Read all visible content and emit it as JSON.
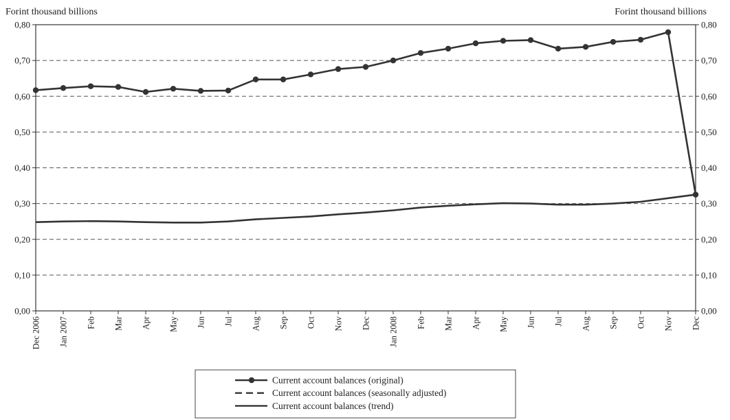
{
  "chart_data": {
    "type": "line",
    "y_unit_label_left": "Forint thousand billions",
    "y_unit_label_right": "Forint thousand billions",
    "ylim": [
      0,
      0.8
    ],
    "y_ticks": [
      "0,00",
      "0,10",
      "0,20",
      "0,30",
      "0,40",
      "0,50",
      "0,60",
      "0,70",
      "0,80"
    ],
    "y_tick_values": [
      0,
      0.1,
      0.2,
      0.3,
      0.4,
      0.5,
      0.6,
      0.7,
      0.8
    ],
    "grid": "horizontal dashed",
    "categories": [
      "Dec 2006",
      "Jan 2007",
      "Feb",
      "Mar",
      "Apr",
      "May",
      "Jun",
      "Jul",
      "Aug",
      "Sep",
      "Oct",
      "Nov",
      "Dec",
      "Jan 2008",
      "Feb",
      "Mar",
      "Apr",
      "May",
      "Jun",
      "Jul",
      "Aug",
      "Sep",
      "Oct",
      "Nov",
      "Dec"
    ],
    "series": [
      {
        "name": "Current account balances (original)",
        "style": "solid-markers",
        "color": "#333333",
        "values": [
          0.617,
          0.623,
          0.628,
          0.626,
          0.612,
          0.621,
          0.615,
          0.616,
          0.647,
          0.647,
          0.661,
          0.676,
          0.682,
          0.7,
          0.721,
          0.733,
          0.748,
          0.755,
          0.757,
          0.733,
          0.738,
          0.752,
          0.758,
          0.779,
          0.325
        ]
      },
      {
        "name": "Current account balances (seasonally adjusted)",
        "style": "dashed",
        "color": "#333333",
        "values": [
          null,
          null,
          null,
          null,
          null,
          null,
          null,
          null,
          null,
          null,
          null,
          null,
          null,
          null,
          null,
          null,
          null,
          null,
          null,
          null,
          null,
          null,
          null,
          null,
          null
        ]
      },
      {
        "name": "Current account balances (trend)",
        "style": "solid",
        "color": "#333333",
        "values": [
          0.248,
          0.25,
          0.251,
          0.25,
          0.248,
          0.247,
          0.247,
          0.25,
          0.256,
          0.26,
          0.264,
          0.27,
          0.275,
          0.281,
          0.289,
          0.294,
          0.298,
          0.301,
          0.3,
          0.297,
          0.297,
          0.3,
          0.305,
          0.315,
          0.325
        ]
      }
    ],
    "legend_position": "bottom-center"
  }
}
